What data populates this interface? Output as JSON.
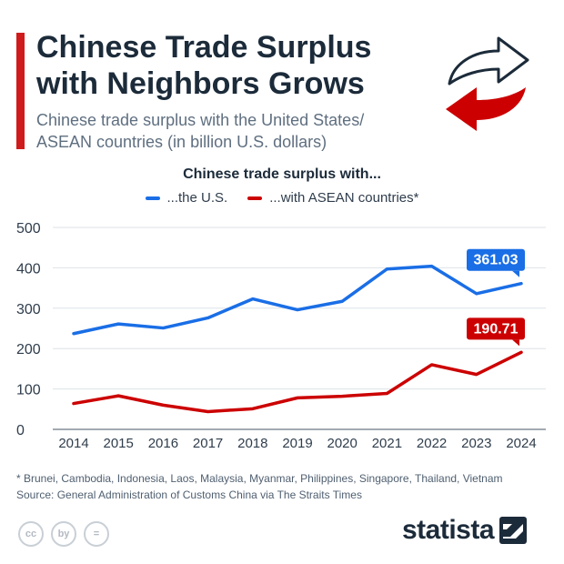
{
  "header": {
    "title_line1": "Chinese Trade Surplus",
    "title_line2": "with Neighbors Grows",
    "subtitle_line1": "Chinese trade surplus with the United States/",
    "subtitle_line2": "ASEAN countries (in billion U.S. dollars)"
  },
  "legend": {
    "title": "Chinese trade surplus with...",
    "items": [
      {
        "label": "...the U.S.",
        "color": "#1a6ee6"
      },
      {
        "label": "...with ASEAN countries*",
        "color": "#cc0000"
      }
    ]
  },
  "chart_data": {
    "type": "line",
    "x": [
      "2014",
      "2015",
      "2016",
      "2017",
      "2018",
      "2019",
      "2020",
      "2021",
      "2022",
      "2023",
      "2024"
    ],
    "yticks": [
      "0",
      "100",
      "200",
      "300",
      "400",
      "500"
    ],
    "ylim": [
      0,
      500
    ],
    "grid": true,
    "series": [
      {
        "name": "...the U.S.",
        "color": "#1a6ee6",
        "values": [
          237,
          261,
          251,
          276,
          323,
          296,
          317,
          397,
          404,
          336,
          361.03
        ],
        "end_label": "361.03"
      },
      {
        "name": "...with ASEAN countries*",
        "color": "#cc0000",
        "values": [
          64,
          83,
          60,
          44,
          51,
          78,
          82,
          89,
          160,
          136,
          190.71
        ],
        "end_label": "190.71"
      }
    ]
  },
  "footer": {
    "footnote": "* Brunei, Cambodia, Indonesia, Laos, Malaysia, Myanmar, Philippines, Singapore, Thailand, Vietnam",
    "source": "Source: General Administration of Customs China via The Straits Times",
    "brand": "statista",
    "cc_icons": [
      "cc",
      "by",
      "="
    ]
  }
}
